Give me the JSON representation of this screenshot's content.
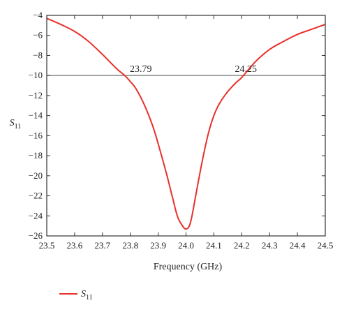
{
  "chart_data": {
    "type": "line",
    "xlabel": "Frequency (GHz)",
    "ylabel": {
      "main": "S",
      "sub": "11"
    },
    "xlim": [
      23.5,
      24.5
    ],
    "ylim": [
      -26,
      -4
    ],
    "xticks": [
      "23.5",
      "23.6",
      "23.7",
      "23.8",
      "23.9",
      "24.0",
      "24.1",
      "24.2",
      "24.3",
      "24.4",
      "24.5"
    ],
    "yticks": [
      "-4",
      "-6",
      "-8",
      "-10",
      "-12",
      "-14",
      "-16",
      "-18",
      "-20",
      "-22",
      "-24",
      "-26"
    ],
    "reference_line": {
      "y": -10,
      "color": "#555555"
    },
    "annotations": [
      {
        "text": "23.79",
        "x": 23.79,
        "y": -10
      },
      {
        "text": "24.25",
        "x": 24.25,
        "y": -10
      }
    ],
    "series": [
      {
        "name": {
          "main": "S",
          "sub": "11"
        },
        "color": "#e8312a",
        "x": [
          23.5,
          23.55,
          23.6,
          23.65,
          23.7,
          23.75,
          23.78,
          23.8,
          23.82,
          23.85,
          23.88,
          23.9,
          23.93,
          23.95,
          23.97,
          23.99,
          24.0,
          24.01,
          24.02,
          24.04,
          24.06,
          24.08,
          24.1,
          24.12,
          24.15,
          24.18,
          24.2,
          24.25,
          24.3,
          24.35,
          24.4,
          24.45,
          24.5
        ],
        "y": [
          -4.3,
          -4.9,
          -5.6,
          -6.6,
          -7.9,
          -9.3,
          -10.0,
          -10.6,
          -11.3,
          -12.9,
          -15.0,
          -16.8,
          -19.8,
          -22.0,
          -24.1,
          -25.1,
          -25.3,
          -25.1,
          -24.2,
          -21.2,
          -18.3,
          -15.8,
          -14.0,
          -12.8,
          -11.6,
          -10.7,
          -10.2,
          -8.6,
          -7.4,
          -6.6,
          -5.9,
          -5.4,
          -4.9
        ]
      }
    ],
    "legend": {
      "position": "bottom-left",
      "label": {
        "main": "S",
        "sub": "11"
      }
    }
  }
}
